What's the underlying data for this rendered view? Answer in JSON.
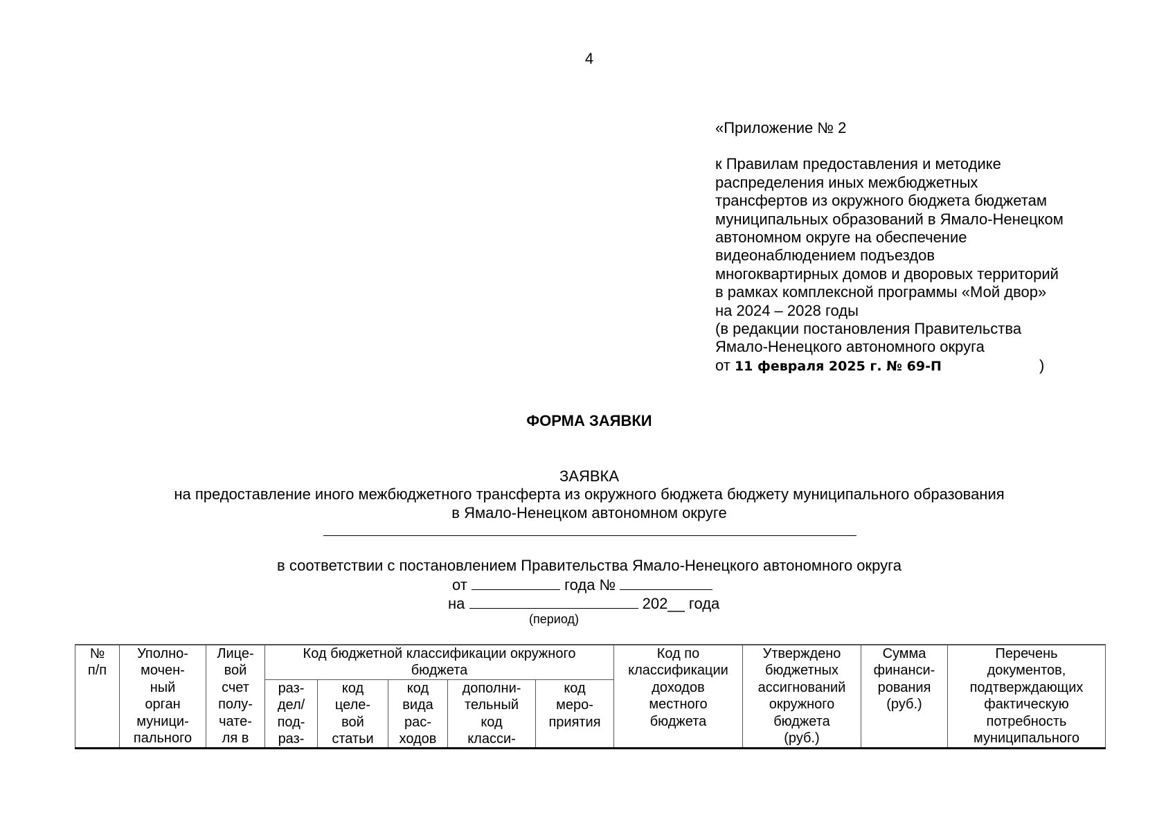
{
  "page_number": "4",
  "appendix": {
    "title": "«Приложение № 2",
    "lines": [
      "к Правилам предоставления и методике",
      "распределения иных межбюджетных",
      "трансфертов из окружного бюджета бюджетам",
      "муниципальных образований в Ямало-Ненецком",
      "автономном округе на обеспечение",
      "видеонаблюдением подъездов",
      "многоквартирных домов и дворовых территорий",
      "в рамках комплексной программы «Мой двор»",
      "на 2024 – 2028 годы",
      "(в редакции постановления Правительства",
      "Ямало-Ненецкого автономного округа"
    ],
    "date_prefix": "от",
    "date_value": "11 февраля 2025 г. № 69-П",
    "close_paren": ")"
  },
  "form_title": "ФОРМА ЗАЯВКИ",
  "request": {
    "title": "ЗАЯВКА",
    "line1": "на предоставление иного межбюджетного трансферта из окружного бюджета бюджету муниципального образования",
    "line2": "в Ямало-Ненецком автономном округе",
    "line3": "в соответствии с постановлением Правительства Ямало-Ненецкого автономного округа",
    "from_label": "от",
    "year_no_label": "года №",
    "on_label": "на",
    "year_label": "202__ года",
    "period_hint": "(период)"
  },
  "table": {
    "headers": {
      "num": "№\nп/п",
      "authority": "Уполно-\nмочен-\nный\nорган\nмуници-\nпального",
      "account": "Лице-\nвой\nсчет\nполу-\nчате-\nля в",
      "kbk_group": "Код бюджетной классификации окружного\nбюджета",
      "section": "раз-\nдел/\nпод-\nраз-",
      "target": "код\nцеле-\nвой\nстатьи",
      "expense_type": "код\nвида\nрас-\nходов",
      "additional": "дополни-\nтельный\nкод\nкласси-",
      "event": "код\nмеро-\nприятия",
      "local_income": "Код по\nклассификации\nдоходов\nместного\nбюджета",
      "approved": "Утверждено\nбюджетных\nассигнований\nокружного\nбюджета\n(руб.)",
      "sum": "Сумма\nфинанси-\nрования\n(руб.)",
      "docs": "Перечень\nдокументов,\nподтверждающих\nфактическую\nпотребность\nмуниципального"
    }
  }
}
